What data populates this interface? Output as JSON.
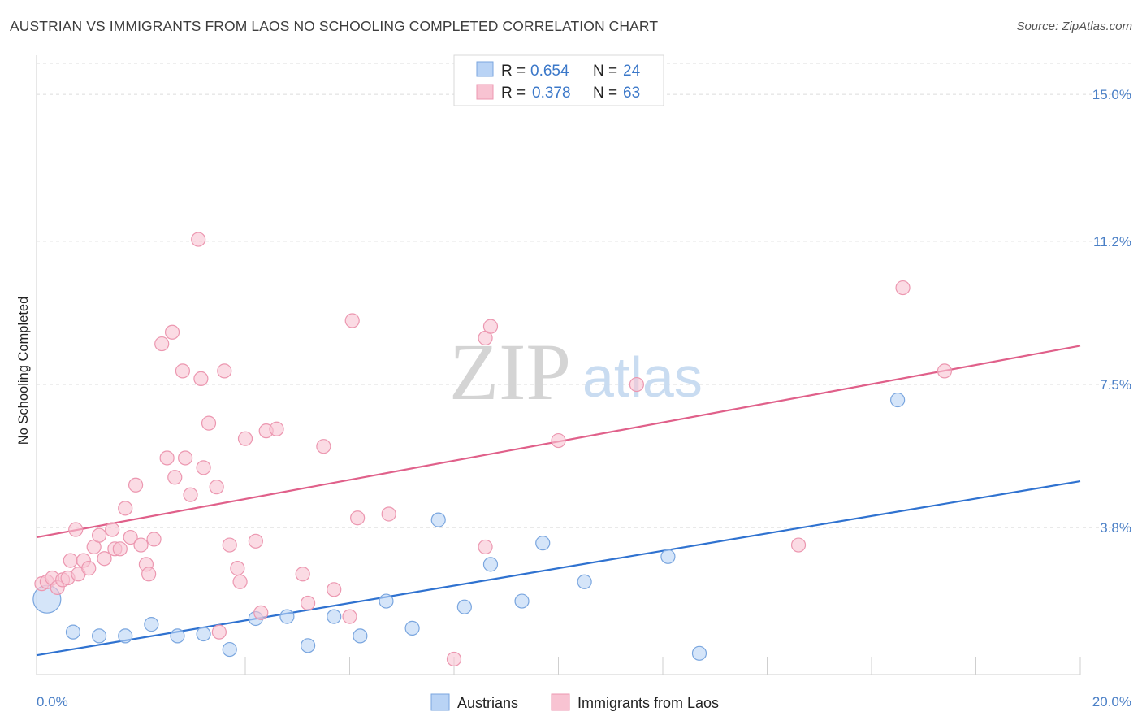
{
  "title": "AUSTRIAN VS IMMIGRANTS FROM LAOS NO SCHOOLING COMPLETED CORRELATION CHART",
  "source": "Source: ZipAtlas.com",
  "watermark": {
    "zip": "ZIP",
    "atlas": "atlas"
  },
  "colors": {
    "blue_fill": "#b9d3f5",
    "blue_stroke": "#7aa6df",
    "blue_line": "#2f72d0",
    "pink_fill": "#f8c3d2",
    "pink_stroke": "#ec97b0",
    "pink_line": "#e0608a",
    "tick_text": "#4a7fc6",
    "grid": "#dcdcdc"
  },
  "legend": {
    "rows": [
      {
        "r_label": "R = ",
        "r_value": "0.654",
        "n_label": "N = ",
        "n_value": "24",
        "color": "blue"
      },
      {
        "r_label": "R = ",
        "r_value": "0.378",
        "n_label": "N = ",
        "n_value": "63",
        "color": "pink"
      }
    ]
  },
  "bottom_legend": [
    {
      "label": "Austrians",
      "color": "blue"
    },
    {
      "label": "Immigrants from Laos",
      "color": "pink"
    }
  ],
  "chart_data": {
    "type": "scatter",
    "title": "AUSTRIAN VS IMMIGRANTS FROM LAOS NO SCHOOLING COMPLETED CORRELATION CHART",
    "xlabel": "",
    "ylabel": "No Schooling Completed",
    "xlim": [
      0,
      20
    ],
    "ylim": [
      0,
      15.8
    ],
    "x_tick_labels": [
      {
        "value": 0,
        "label": "0.0%"
      },
      {
        "value": 20,
        "label": "20.0%"
      }
    ],
    "x_minor_ticks": [
      2,
      4,
      6,
      8,
      10,
      12,
      14,
      16,
      18,
      20
    ],
    "y_ticks": [
      {
        "value": 3.8,
        "label": "3.8%"
      },
      {
        "value": 7.5,
        "label": "7.5%"
      },
      {
        "value": 11.2,
        "label": "11.2%"
      },
      {
        "value": 15.0,
        "label": "15.0%"
      }
    ],
    "series": [
      {
        "name": "Austrians",
        "color": "blue",
        "trend": {
          "x0": 0,
          "y0": 0.5,
          "x1": 20,
          "y1": 5.0
        },
        "points": [
          {
            "x": 0.2,
            "y": 1.95,
            "big": true
          },
          {
            "x": 0.7,
            "y": 1.1
          },
          {
            "x": 1.2,
            "y": 1.0
          },
          {
            "x": 1.7,
            "y": 1.0
          },
          {
            "x": 2.2,
            "y": 1.3
          },
          {
            "x": 2.7,
            "y": 1.0
          },
          {
            "x": 3.2,
            "y": 1.05
          },
          {
            "x": 3.7,
            "y": 0.65
          },
          {
            "x": 4.2,
            "y": 1.45
          },
          {
            "x": 4.8,
            "y": 1.5
          },
          {
            "x": 5.2,
            "y": 0.75
          },
          {
            "x": 5.7,
            "y": 1.5
          },
          {
            "x": 6.2,
            "y": 1.0
          },
          {
            "x": 6.7,
            "y": 1.9
          },
          {
            "x": 7.2,
            "y": 1.2
          },
          {
            "x": 7.7,
            "y": 4.0
          },
          {
            "x": 8.2,
            "y": 1.75
          },
          {
            "x": 8.7,
            "y": 2.85
          },
          {
            "x": 9.3,
            "y": 1.9
          },
          {
            "x": 9.7,
            "y": 3.4
          },
          {
            "x": 10.5,
            "y": 2.4
          },
          {
            "x": 12.1,
            "y": 3.05
          },
          {
            "x": 12.7,
            "y": 0.55
          },
          {
            "x": 16.5,
            "y": 7.1
          }
        ]
      },
      {
        "name": "Immigrants from Laos",
        "color": "pink",
        "trend": {
          "x0": 0,
          "y0": 3.55,
          "x1": 20,
          "y1": 8.5
        },
        "points": [
          {
            "x": 0.1,
            "y": 2.35
          },
          {
            "x": 0.2,
            "y": 2.4
          },
          {
            "x": 0.3,
            "y": 2.5
          },
          {
            "x": 0.4,
            "y": 2.25
          },
          {
            "x": 0.5,
            "y": 2.45
          },
          {
            "x": 0.6,
            "y": 2.5
          },
          {
            "x": 0.65,
            "y": 2.95
          },
          {
            "x": 0.75,
            "y": 3.75
          },
          {
            "x": 0.8,
            "y": 2.6
          },
          {
            "x": 0.9,
            "y": 2.95
          },
          {
            "x": 1.0,
            "y": 2.75
          },
          {
            "x": 1.1,
            "y": 3.3
          },
          {
            "x": 1.2,
            "y": 3.6
          },
          {
            "x": 1.3,
            "y": 3.0
          },
          {
            "x": 1.45,
            "y": 3.75
          },
          {
            "x": 1.5,
            "y": 3.25
          },
          {
            "x": 1.6,
            "y": 3.25
          },
          {
            "x": 1.7,
            "y": 4.3
          },
          {
            "x": 1.8,
            "y": 3.55
          },
          {
            "x": 1.9,
            "y": 4.9
          },
          {
            "x": 2.0,
            "y": 3.35
          },
          {
            "x": 2.1,
            "y": 2.85
          },
          {
            "x": 2.15,
            "y": 2.6
          },
          {
            "x": 2.25,
            "y": 3.5
          },
          {
            "x": 2.4,
            "y": 8.55
          },
          {
            "x": 2.5,
            "y": 5.6
          },
          {
            "x": 2.6,
            "y": 8.85
          },
          {
            "x": 2.65,
            "y": 5.1
          },
          {
            "x": 2.8,
            "y": 7.85
          },
          {
            "x": 2.85,
            "y": 5.6
          },
          {
            "x": 2.95,
            "y": 4.65
          },
          {
            "x": 3.1,
            "y": 11.25
          },
          {
            "x": 3.15,
            "y": 7.65
          },
          {
            "x": 3.2,
            "y": 5.35
          },
          {
            "x": 3.3,
            "y": 6.5
          },
          {
            "x": 3.45,
            "y": 4.85
          },
          {
            "x": 3.5,
            "y": 1.1
          },
          {
            "x": 3.6,
            "y": 7.85
          },
          {
            "x": 3.7,
            "y": 3.35
          },
          {
            "x": 3.85,
            "y": 2.75
          },
          {
            "x": 3.9,
            "y": 2.4
          },
          {
            "x": 4.0,
            "y": 6.1
          },
          {
            "x": 4.2,
            "y": 3.45
          },
          {
            "x": 4.3,
            "y": 1.6
          },
          {
            "x": 4.4,
            "y": 6.3
          },
          {
            "x": 4.6,
            "y": 6.35
          },
          {
            "x": 5.1,
            "y": 2.6
          },
          {
            "x": 5.2,
            "y": 1.85
          },
          {
            "x": 5.5,
            "y": 5.9
          },
          {
            "x": 5.7,
            "y": 2.2
          },
          {
            "x": 6.0,
            "y": 1.5
          },
          {
            "x": 6.05,
            "y": 9.15
          },
          {
            "x": 6.15,
            "y": 4.05
          },
          {
            "x": 6.75,
            "y": 4.15
          },
          {
            "x": 8.0,
            "y": 0.4
          },
          {
            "x": 8.6,
            "y": 3.3
          },
          {
            "x": 8.6,
            "y": 8.7
          },
          {
            "x": 8.7,
            "y": 9.0
          },
          {
            "x": 10.0,
            "y": 6.05
          },
          {
            "x": 11.5,
            "y": 7.5
          },
          {
            "x": 14.6,
            "y": 3.35
          },
          {
            "x": 16.6,
            "y": 10.0
          },
          {
            "x": 17.4,
            "y": 7.85
          }
        ]
      }
    ]
  }
}
